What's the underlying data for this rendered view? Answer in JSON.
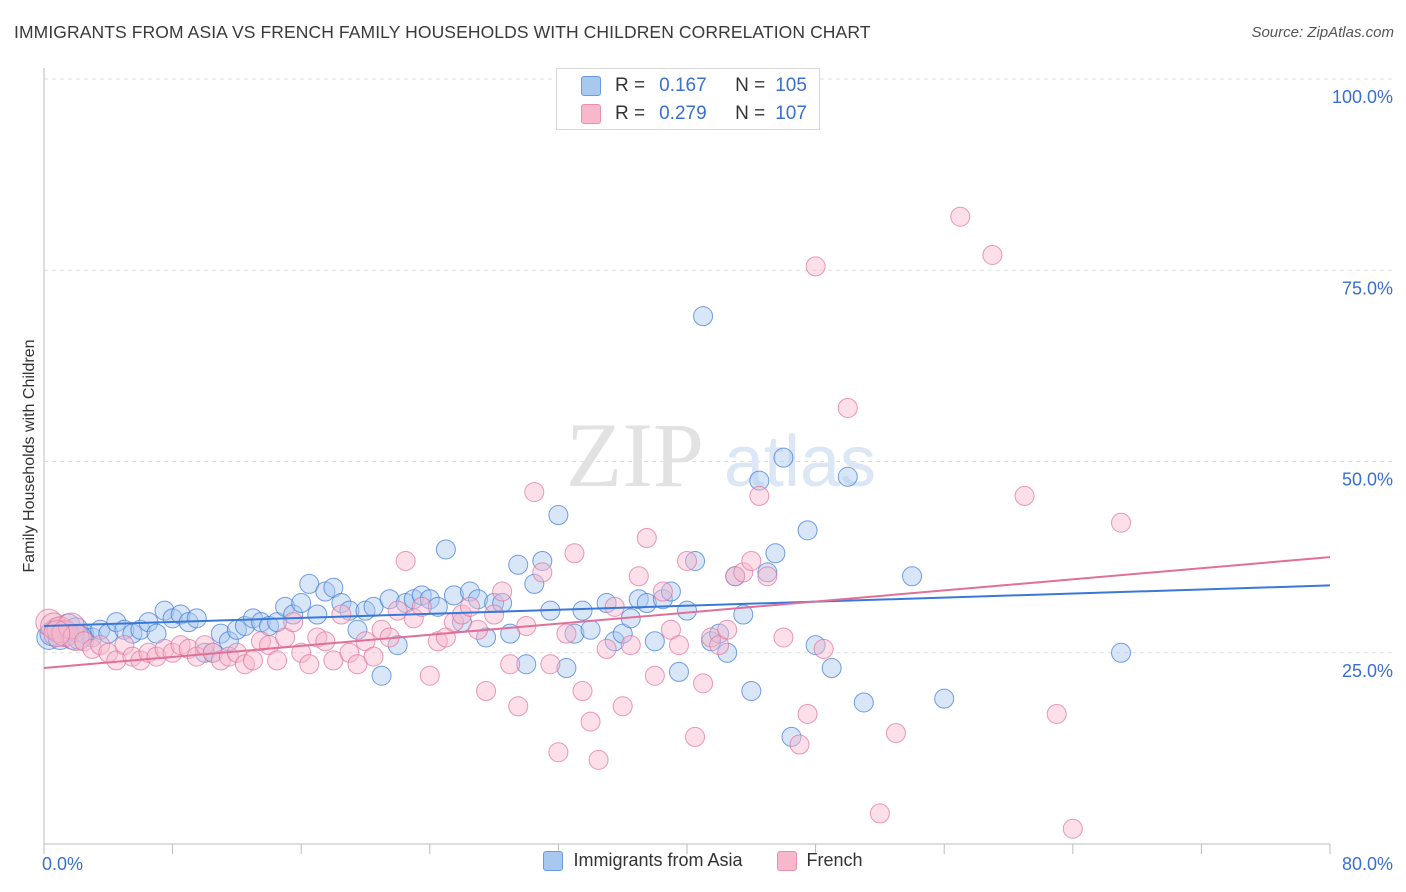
{
  "title": "IMMIGRANTS FROM ASIA VS FRENCH FAMILY HOUSEHOLDS WITH CHILDREN CORRELATION CHART",
  "source": "Source: ZipAtlas.com",
  "watermark": {
    "zip": "ZIP",
    "atlas": "atlas"
  },
  "legend_box": {
    "rows": [
      {
        "r_label": "R =",
        "r_value": "0.167",
        "n_label": "N =",
        "n_value": "105",
        "color": "#a8c8f0"
      },
      {
        "r_label": "R =",
        "r_value": "0.279",
        "n_label": "N =",
        "n_value": "107",
        "color": "#f8b8cc"
      }
    ]
  },
  "legend_bottom": [
    {
      "label": "Immigrants from Asia",
      "color": "#a8c8f0"
    },
    {
      "label": "French",
      "color": "#f8b8cc"
    }
  ],
  "chart_data": {
    "type": "scatter",
    "xlabel": "",
    "ylabel": "Family Households with Children",
    "xlim": [
      0,
      80
    ],
    "ylim": [
      0,
      100
    ],
    "x_tick_labels": [
      "0.0%",
      "80.0%"
    ],
    "y_tick_labels": [
      "25.0%",
      "50.0%",
      "75.0%",
      "100.0%"
    ],
    "y_ticks": [
      25,
      50,
      75,
      100
    ],
    "grid": true,
    "legend_position": "top-center",
    "series": [
      {
        "name": "Immigrants from Asia",
        "color": "#3a78d8",
        "fill": "#a8c8f0",
        "trend": {
          "x": [
            0,
            80
          ],
          "y": [
            28.5,
            33.8
          ]
        },
        "points": [
          [
            0.3,
            27
          ],
          [
            0.5,
            27.5
          ],
          [
            0.8,
            28
          ],
          [
            1,
            27
          ],
          [
            1.2,
            27.5
          ],
          [
            1.5,
            28.5
          ],
          [
            1.8,
            27
          ],
          [
            2,
            28
          ],
          [
            2.5,
            27.5
          ],
          [
            3,
            27
          ],
          [
            3.5,
            28
          ],
          [
            4,
            27.5
          ],
          [
            4.5,
            29
          ],
          [
            5,
            28
          ],
          [
            5.5,
            27.5
          ],
          [
            6,
            28
          ],
          [
            6.5,
            29
          ],
          [
            7,
            27.5
          ],
          [
            7.5,
            30.5
          ],
          [
            8,
            29.5
          ],
          [
            8.5,
            30
          ],
          [
            9,
            29
          ],
          [
            9.5,
            29.5
          ],
          [
            10,
            25
          ],
          [
            10.5,
            25
          ],
          [
            11,
            27.5
          ],
          [
            11.5,
            26.5
          ],
          [
            12,
            28
          ],
          [
            12.5,
            28.5
          ],
          [
            13,
            29.5
          ],
          [
            13.5,
            29
          ],
          [
            14,
            28.5
          ],
          [
            14.5,
            29
          ],
          [
            15,
            31
          ],
          [
            15.5,
            30
          ],
          [
            16,
            31.5
          ],
          [
            16.5,
            34
          ],
          [
            17,
            30
          ],
          [
            17.5,
            33
          ],
          [
            18,
            33.5
          ],
          [
            18.5,
            31.5
          ],
          [
            19,
            30.5
          ],
          [
            19.5,
            28
          ],
          [
            20,
            30.5
          ],
          [
            20.5,
            31
          ],
          [
            21,
            22
          ],
          [
            21.5,
            32
          ],
          [
            22,
            26
          ],
          [
            22.5,
            31.5
          ],
          [
            23,
            32
          ],
          [
            23.5,
            32.5
          ],
          [
            24,
            32
          ],
          [
            24.5,
            31
          ],
          [
            25,
            38.5
          ],
          [
            25.5,
            32.5
          ],
          [
            26,
            29
          ],
          [
            26.5,
            33
          ],
          [
            27,
            32
          ],
          [
            27.5,
            27
          ],
          [
            28,
            31.5
          ],
          [
            28.5,
            31.5
          ],
          [
            29,
            27.5
          ],
          [
            29.5,
            36.5
          ],
          [
            30,
            23.5
          ],
          [
            30.5,
            34
          ],
          [
            31,
            37
          ],
          [
            31.5,
            30.5
          ],
          [
            32,
            43
          ],
          [
            32.5,
            23
          ],
          [
            33,
            27.5
          ],
          [
            33.5,
            30.5
          ],
          [
            34,
            28
          ],
          [
            35,
            31.5
          ],
          [
            35.5,
            26.5
          ],
          [
            36,
            27.5
          ],
          [
            36.5,
            29.5
          ],
          [
            37,
            32
          ],
          [
            37.5,
            31.5
          ],
          [
            38,
            26.5
          ],
          [
            38.5,
            32
          ],
          [
            39,
            33
          ],
          [
            39.5,
            22.5
          ],
          [
            40,
            30.5
          ],
          [
            40.5,
            37
          ],
          [
            41,
            69
          ],
          [
            41.5,
            26.5
          ],
          [
            42,
            27.5
          ],
          [
            42.5,
            25
          ],
          [
            43,
            35
          ],
          [
            43.5,
            30
          ],
          [
            44,
            20
          ],
          [
            44.5,
            47.5
          ],
          [
            45,
            35.5
          ],
          [
            45.5,
            38
          ],
          [
            46,
            50.5
          ],
          [
            46.5,
            14
          ],
          [
            47.5,
            41
          ],
          [
            48,
            26
          ],
          [
            49,
            23
          ],
          [
            50,
            48
          ],
          [
            51,
            18.5
          ],
          [
            54,
            35
          ],
          [
            56,
            19
          ],
          [
            67,
            25
          ],
          [
            2.2,
            27
          ]
        ]
      },
      {
        "name": "French",
        "color": "#e0709a",
        "fill": "#f8b8cc",
        "trend": {
          "x": [
            0,
            80
          ],
          "y": [
            23,
            37.5
          ]
        },
        "points": [
          [
            0.3,
            29
          ],
          [
            0.6,
            28.5
          ],
          [
            1,
            28
          ],
          [
            1.3,
            27.5
          ],
          [
            1.7,
            28.5
          ],
          [
            2,
            27
          ],
          [
            2.5,
            26.5
          ],
          [
            3,
            25.5
          ],
          [
            3.5,
            26
          ],
          [
            4,
            25
          ],
          [
            4.5,
            24
          ],
          [
            5,
            26
          ],
          [
            5.5,
            24.5
          ],
          [
            6,
            24
          ],
          [
            6.5,
            25
          ],
          [
            7,
            24.5
          ],
          [
            7.5,
            25.5
          ],
          [
            8,
            25
          ],
          [
            8.5,
            26
          ],
          [
            9,
            25.5
          ],
          [
            9.5,
            24.5
          ],
          [
            10,
            26
          ],
          [
            10.5,
            25
          ],
          [
            11,
            24
          ],
          [
            11.5,
            24.5
          ],
          [
            12,
            25
          ],
          [
            12.5,
            23.5
          ],
          [
            13,
            24
          ],
          [
            13.5,
            26.5
          ],
          [
            14,
            26
          ],
          [
            14.5,
            24
          ],
          [
            15,
            27
          ],
          [
            15.5,
            29
          ],
          [
            16,
            25
          ],
          [
            16.5,
            23.5
          ],
          [
            17,
            27
          ],
          [
            17.5,
            26.5
          ],
          [
            18,
            24
          ],
          [
            18.5,
            30
          ],
          [
            19,
            25
          ],
          [
            19.5,
            23.5
          ],
          [
            20,
            26.5
          ],
          [
            20.5,
            24.5
          ],
          [
            21,
            28
          ],
          [
            21.5,
            27
          ],
          [
            22,
            30.5
          ],
          [
            22.5,
            37
          ],
          [
            23,
            29.5
          ],
          [
            23.5,
            31
          ],
          [
            24,
            22
          ],
          [
            24.5,
            26.5
          ],
          [
            25,
            27
          ],
          [
            25.5,
            29
          ],
          [
            26,
            30
          ],
          [
            26.5,
            31
          ],
          [
            27,
            28
          ],
          [
            27.5,
            20
          ],
          [
            28,
            30
          ],
          [
            28.5,
            33
          ],
          [
            29,
            23.5
          ],
          [
            29.5,
            18
          ],
          [
            30,
            28.5
          ],
          [
            30.5,
            46
          ],
          [
            31,
            35.5
          ],
          [
            31.5,
            23.5
          ],
          [
            32,
            12
          ],
          [
            32.5,
            27.5
          ],
          [
            33,
            38
          ],
          [
            33.5,
            20
          ],
          [
            34,
            16
          ],
          [
            34.5,
            11
          ],
          [
            35,
            25.5
          ],
          [
            35.5,
            31
          ],
          [
            36,
            18
          ],
          [
            36.5,
            26
          ],
          [
            37,
            35
          ],
          [
            37.5,
            40
          ],
          [
            38,
            22
          ],
          [
            38.5,
            33
          ],
          [
            39,
            28
          ],
          [
            39.5,
            26
          ],
          [
            40,
            37
          ],
          [
            40.5,
            14
          ],
          [
            41,
            21
          ],
          [
            41.5,
            27
          ],
          [
            42,
            26
          ],
          [
            42.5,
            28
          ],
          [
            43,
            35
          ],
          [
            43.5,
            35.5
          ],
          [
            44,
            37
          ],
          [
            44.5,
            45.5
          ],
          [
            45,
            35
          ],
          [
            46,
            27
          ],
          [
            47,
            13
          ],
          [
            47.5,
            17
          ],
          [
            48,
            75.5
          ],
          [
            48.5,
            25.5
          ],
          [
            50,
            57
          ],
          [
            52,
            4
          ],
          [
            53,
            14.5
          ],
          [
            57,
            82
          ],
          [
            59,
            77
          ],
          [
            61,
            45.5
          ],
          [
            63,
            17
          ],
          [
            64,
            2
          ],
          [
            67,
            42
          ],
          [
            0.8,
            27.5
          ]
        ]
      }
    ]
  }
}
